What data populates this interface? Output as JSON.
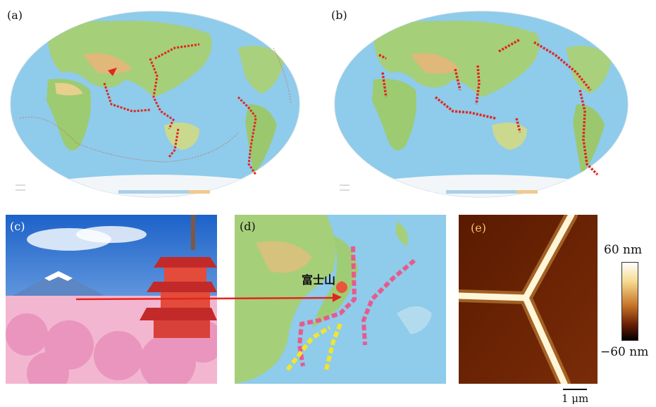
{
  "panels": {
    "a": {
      "label": "(a)"
    },
    "b": {
      "label": "(b)"
    },
    "c": {
      "label": "(c)"
    },
    "d": {
      "label": "(d)",
      "mountain_label": "富士山"
    },
    "e": {
      "label": "(e)"
    }
  },
  "colorbar": {
    "max_label": "60 nm",
    "min_label": "−60 nm"
  },
  "scalebar": {
    "label": "1 μm"
  },
  "colors": {
    "ocean": "#8ec9ea",
    "land": "#9cc76f",
    "trench_marker": "#e0261f",
    "pink_dash": "#e85a8d",
    "yellow_dash": "#f3e52a",
    "afm_dark": "#5a1a00",
    "afm_ridge": "#fff6d8",
    "arrow": "#e0261f"
  }
}
